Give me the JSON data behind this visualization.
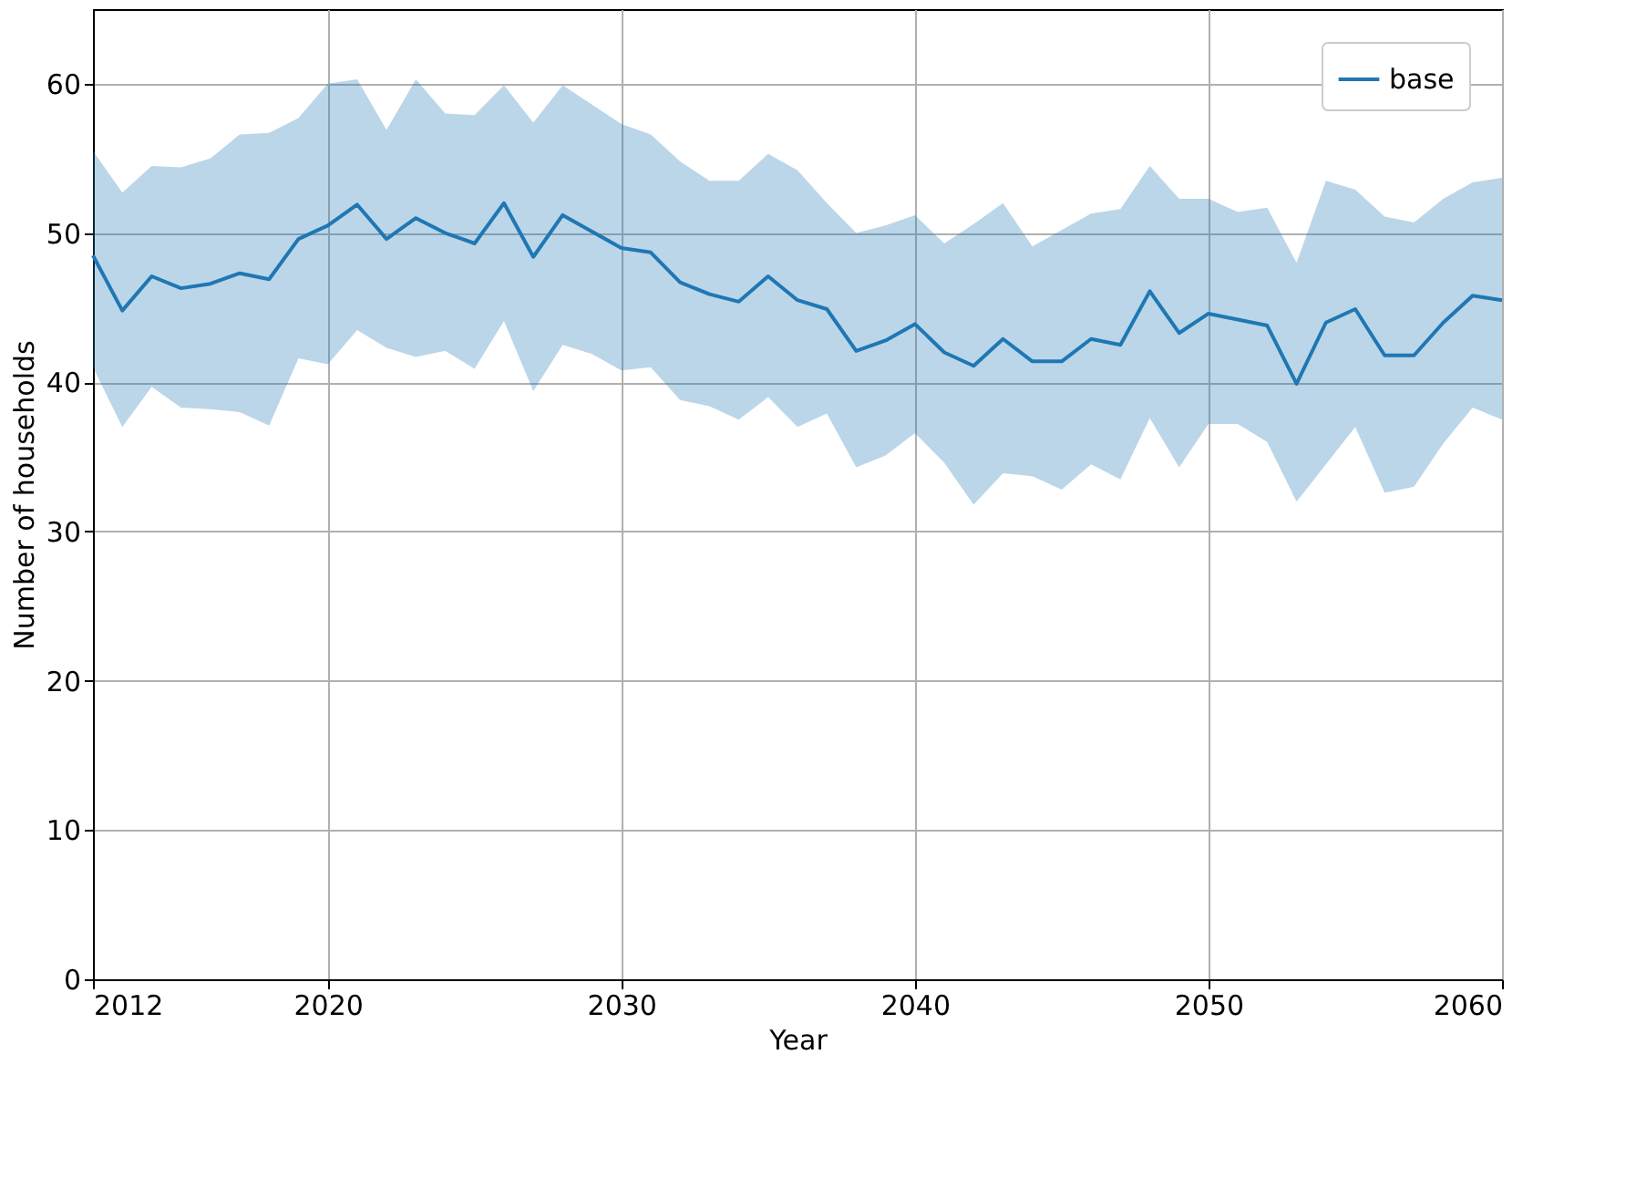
{
  "chart_data": {
    "type": "line",
    "xlabel": "Year",
    "ylabel": "Number of households",
    "x": [
      2012,
      2013,
      2014,
      2015,
      2016,
      2017,
      2018,
      2019,
      2020,
      2021,
      2022,
      2023,
      2024,
      2025,
      2026,
      2027,
      2028,
      2029,
      2030,
      2031,
      2032,
      2033,
      2034,
      2035,
      2036,
      2037,
      2038,
      2039,
      2040,
      2041,
      2042,
      2043,
      2044,
      2045,
      2046,
      2047,
      2048,
      2049,
      2050,
      2051,
      2052,
      2053,
      2054,
      2055,
      2056,
      2057,
      2058,
      2059,
      2060
    ],
    "series": [
      {
        "name": "base",
        "color": "#1f77b4",
        "values": [
          48.5,
          44.8,
          47.1,
          46.3,
          46.6,
          47.3,
          46.9,
          49.6,
          50.5,
          51.9,
          49.6,
          51.0,
          50.0,
          49.3,
          52.0,
          48.4,
          51.2,
          50.1,
          49.0,
          48.7,
          46.7,
          45.9,
          45.4,
          47.1,
          45.5,
          44.9,
          42.1,
          42.8,
          43.9,
          42.0,
          41.1,
          42.9,
          41.4,
          41.4,
          42.9,
          42.5,
          46.1,
          43.3,
          44.6,
          44.2,
          43.8,
          39.9,
          44.0,
          44.9,
          41.8,
          41.8,
          44.0,
          45.8,
          45.5
        ],
        "upper": [
          55.5,
          52.7,
          54.5,
          54.4,
          55.0,
          56.6,
          56.7,
          57.7,
          60.0,
          60.3,
          56.9,
          60.3,
          58.0,
          57.9,
          59.9,
          57.4,
          59.9,
          58.6,
          57.3,
          56.6,
          54.8,
          53.5,
          53.5,
          55.3,
          54.2,
          52.0,
          50.0,
          50.5,
          51.2,
          49.3,
          50.6,
          52.0,
          49.1,
          50.2,
          51.3,
          51.6,
          54.5,
          52.3,
          52.3,
          51.4,
          51.7,
          48.0,
          53.5,
          52.9,
          51.1,
          50.7,
          52.3,
          53.4,
          53.7
        ],
        "lower": [
          41.0,
          37.0,
          39.7,
          38.3,
          38.2,
          38.0,
          37.1,
          41.6,
          41.2,
          43.5,
          42.3,
          41.7,
          42.1,
          40.9,
          44.1,
          39.4,
          42.5,
          41.9,
          40.8,
          41.0,
          38.8,
          38.4,
          37.5,
          39.0,
          37.0,
          37.9,
          34.3,
          35.1,
          36.6,
          34.6,
          31.8,
          33.9,
          33.7,
          32.8,
          34.5,
          33.5,
          37.6,
          34.3,
          37.2,
          37.2,
          36.0,
          32.0,
          34.5,
          37.0,
          32.6,
          33.0,
          35.9,
          38.3,
          37.5
        ]
      }
    ],
    "xlim": [
      2012,
      2060
    ],
    "ylim": [
      0,
      65
    ],
    "xticks": [
      2012,
      2020,
      2030,
      2040,
      2050,
      2060
    ],
    "yticks": [
      0,
      10,
      20,
      30,
      40,
      50,
      60
    ],
    "grid": true,
    "legend": "top right",
    "marker": "none",
    "line_style": "solid"
  }
}
